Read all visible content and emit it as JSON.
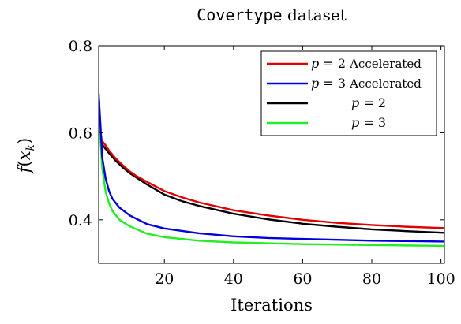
{
  "chart_data": {
    "type": "line",
    "title": {
      "mono": "Covertype",
      "rest": "dataset"
    },
    "xlabel": "Iterations",
    "ylabel": {
      "base": "f",
      "open": "(",
      "var": "x",
      "sub": "k",
      "close": ")"
    },
    "xlim": [
      1,
      101
    ],
    "ylim": [
      0.3,
      0.8
    ],
    "xticks": [
      20,
      40,
      60,
      80,
      100
    ],
    "yticks": [
      0.4,
      0.6,
      0.8
    ],
    "xtick_labels": [
      "20",
      "40",
      "60",
      "80",
      "100"
    ],
    "ytick_labels": [
      "0.4",
      "0.6",
      "0.8"
    ],
    "legend_position": "top-right",
    "grid": false,
    "series": [
      {
        "name": "p = 2 Accelerated",
        "legend": {
          "var": "p",
          "eq": " = 2 ",
          "text": "Accelerated"
        },
        "color": "#e00000",
        "points": [
          [
            2,
            0.581
          ],
          [
            3,
            0.571
          ],
          [
            4,
            0.559
          ],
          [
            6,
            0.54
          ],
          [
            8,
            0.525
          ],
          [
            10,
            0.511
          ],
          [
            12,
            0.5
          ],
          [
            15,
            0.487
          ],
          [
            20,
            0.466
          ],
          [
            25,
            0.452
          ],
          [
            30,
            0.44
          ],
          [
            40,
            0.422
          ],
          [
            50,
            0.41
          ],
          [
            60,
            0.4
          ],
          [
            70,
            0.393
          ],
          [
            80,
            0.388
          ],
          [
            90,
            0.384
          ],
          [
            101,
            0.381
          ]
        ]
      },
      {
        "name": "p = 3 Accelerated",
        "legend": {
          "var": "p",
          "eq": " = 3 ",
          "text": "Accelerated"
        },
        "color": "#0000dd",
        "points": [
          [
            1,
            0.685
          ],
          [
            1.5,
            0.62
          ],
          [
            2,
            0.545
          ],
          [
            3,
            0.495
          ],
          [
            4,
            0.466
          ],
          [
            5,
            0.448
          ],
          [
            7,
            0.428
          ],
          [
            10,
            0.41
          ],
          [
            15,
            0.39
          ],
          [
            20,
            0.38
          ],
          [
            30,
            0.369
          ],
          [
            40,
            0.362
          ],
          [
            50,
            0.358
          ],
          [
            60,
            0.356
          ],
          [
            70,
            0.354
          ],
          [
            80,
            0.352
          ],
          [
            90,
            0.351
          ],
          [
            101,
            0.35
          ]
        ]
      },
      {
        "name": "p = 2",
        "legend": {
          "var": "p",
          "eq": " = 2",
          "text": ""
        },
        "color": "#000000",
        "points": [
          [
            1,
            0.69
          ],
          [
            1.5,
            0.605
          ],
          [
            2,
            0.573
          ],
          [
            3,
            0.563
          ],
          [
            4,
            0.553
          ],
          [
            6,
            0.535
          ],
          [
            8,
            0.52
          ],
          [
            10,
            0.507
          ],
          [
            15,
            0.481
          ],
          [
            20,
            0.458
          ],
          [
            25,
            0.443
          ],
          [
            30,
            0.432
          ],
          [
            40,
            0.414
          ],
          [
            50,
            0.401
          ],
          [
            60,
            0.391
          ],
          [
            70,
            0.384
          ],
          [
            80,
            0.378
          ],
          [
            90,
            0.374
          ],
          [
            101,
            0.37
          ]
        ]
      },
      {
        "name": "p = 3",
        "legend": {
          "var": "p",
          "eq": " = 3",
          "text": ""
        },
        "color": "#22ee22",
        "points": [
          [
            1,
            0.69
          ],
          [
            1.5,
            0.585
          ],
          [
            2,
            0.52
          ],
          [
            3,
            0.465
          ],
          [
            4,
            0.438
          ],
          [
            5,
            0.42
          ],
          [
            7,
            0.4
          ],
          [
            10,
            0.385
          ],
          [
            15,
            0.368
          ],
          [
            20,
            0.36
          ],
          [
            30,
            0.352
          ],
          [
            40,
            0.348
          ],
          [
            50,
            0.346
          ],
          [
            60,
            0.344
          ],
          [
            70,
            0.343
          ],
          [
            80,
            0.342
          ],
          [
            90,
            0.341
          ],
          [
            101,
            0.34
          ]
        ]
      }
    ]
  }
}
